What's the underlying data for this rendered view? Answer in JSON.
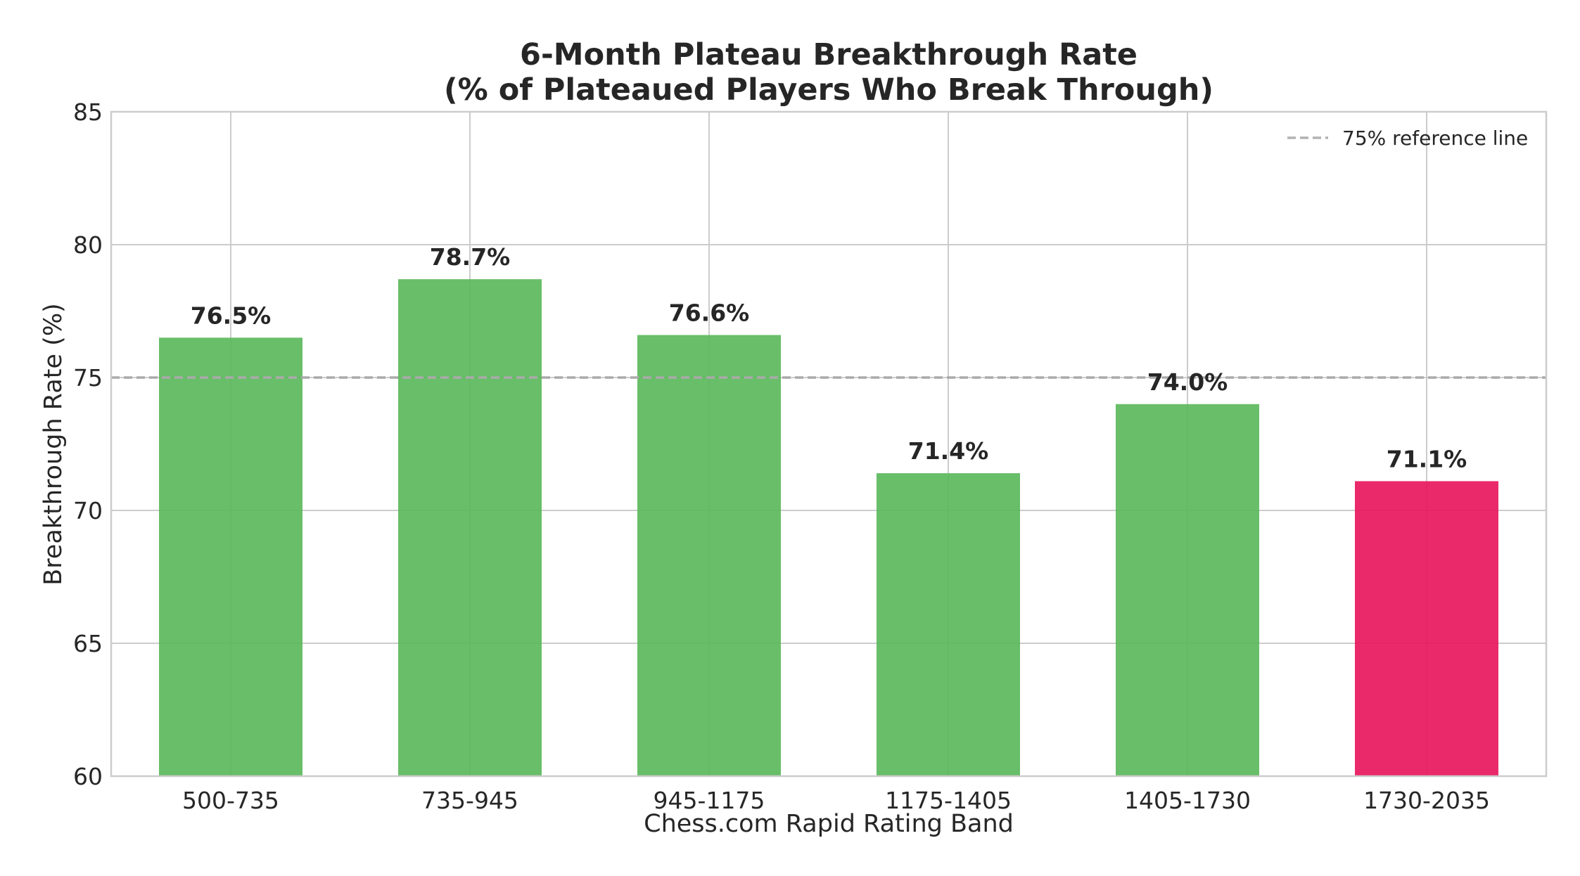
{
  "chart_data": {
    "type": "bar",
    "title_lines": [
      "6-Month Plateau Breakthrough Rate",
      "(% of Plateaued Players Who Break Through)"
    ],
    "xlabel": "Chess.com Rapid Rating Band",
    "ylabel": "Breakthrough Rate (%)",
    "categories": [
      "500-735",
      "735-945",
      "945-1175",
      "1175-1405",
      "1405-1730",
      "1730-2035"
    ],
    "values": [
      76.5,
      78.7,
      76.6,
      71.4,
      74.0,
      71.1
    ],
    "value_labels": [
      "76.5%",
      "78.7%",
      "76.6%",
      "71.4%",
      "74.0%",
      "71.1%"
    ],
    "bar_colors": [
      "#5cb85c",
      "#5cb85c",
      "#5cb85c",
      "#5cb85c",
      "#5cb85c",
      "#e8175d"
    ],
    "ylim": [
      60,
      85
    ],
    "yticks": [
      60,
      65,
      70,
      75,
      80,
      85
    ],
    "grid": true,
    "reference_line": {
      "value": 75,
      "label": "75% reference line",
      "style": "dashed",
      "color": "#aaaaaa"
    },
    "legend_position": "top-right",
    "colors": {
      "axes": "#cccccc",
      "grid": "#cccccc",
      "text": "#262626"
    }
  }
}
